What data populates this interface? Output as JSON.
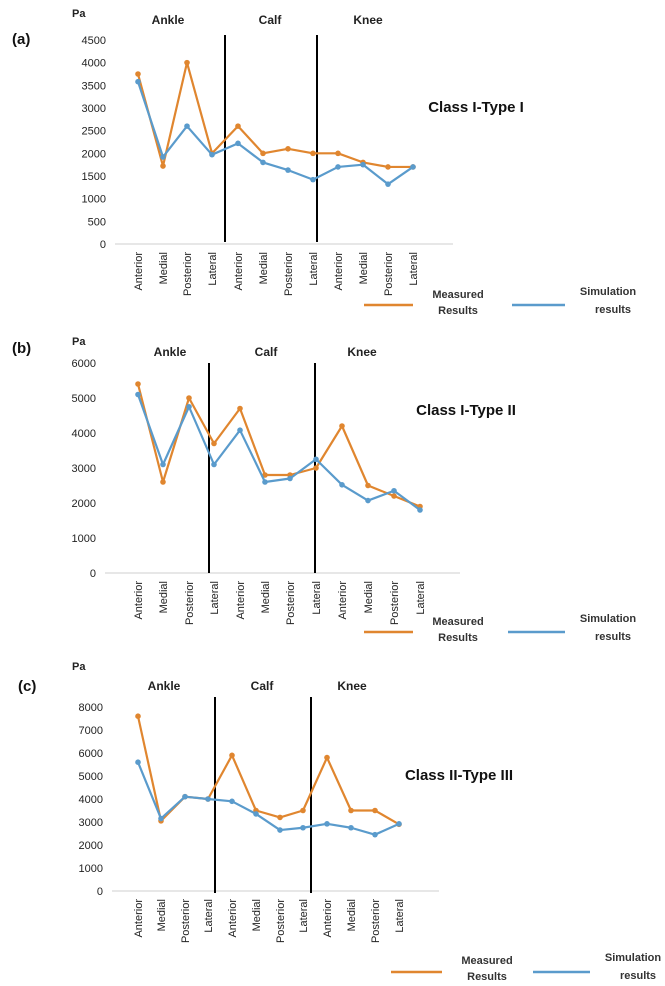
{
  "colors": {
    "measured": "#e0862f",
    "simulation": "#5a9bcc",
    "separator": "#000000",
    "axis": "#cfcfcf"
  },
  "chart_data": [
    {
      "type": "line",
      "panel_label": "(a)",
      "unit_label": "Pa",
      "class_label": "Class I-Type I",
      "groups": [
        "Ankle",
        "Calf",
        "Knee"
      ],
      "categories": [
        "Anterior",
        "Medial",
        "Posterior",
        "Lateral",
        "Anterior",
        "Medial",
        "Posterior",
        "Lateral",
        "Anterior",
        "Medial",
        "Posterior",
        "Lateral"
      ],
      "ylim": [
        0,
        4500
      ],
      "yticks": [
        "0",
        "500",
        "1000",
        "1500",
        "2000",
        "2500",
        "3000",
        "3500",
        "4000",
        "4500"
      ],
      "series": [
        {
          "name": "Measured Results",
          "values": [
            3750,
            1720,
            4000,
            2000,
            2600,
            2000,
            2100,
            2000,
            2000,
            1800,
            1700,
            1700
          ]
        },
        {
          "name": "Simulation results",
          "values": [
            3580,
            1920,
            2600,
            1970,
            2220,
            1800,
            1630,
            1420,
            1700,
            1750,
            1320,
            1700
          ]
        }
      ],
      "legend": {
        "measured_line1": "Measured",
        "measured_line2": "Results",
        "simulation_line1": "Simulation",
        "simulation_line2": "results"
      }
    },
    {
      "type": "line",
      "panel_label": "(b)",
      "unit_label": "Pa",
      "class_label": "Class I-Type II",
      "groups": [
        "Ankle",
        "Calf",
        "Knee"
      ],
      "categories": [
        "Anterior",
        "Medial",
        "Posterior",
        "Lateral",
        "Anterior",
        "Medial",
        "Posterior",
        "Lateral",
        "Anterior",
        "Medial",
        "Posterior",
        "Lateral"
      ],
      "ylim": [
        0,
        6000
      ],
      "yticks": [
        "0",
        "1000",
        "2000",
        "3000",
        "4000",
        "5000",
        "6000"
      ],
      "series": [
        {
          "name": "Measured Results",
          "values": [
            5400,
            2600,
            5000,
            3700,
            4700,
            2800,
            2800,
            3000,
            4200,
            2500,
            2200,
            1900
          ]
        },
        {
          "name": "Simulation results",
          "values": [
            5100,
            3100,
            4750,
            3100,
            4080,
            2600,
            2700,
            3250,
            2520,
            2070,
            2350,
            1800
          ]
        }
      ],
      "legend": {
        "measured_line1": "Measured",
        "measured_line2": "Results",
        "simulation_line1": "Simulation",
        "simulation_line2": "results"
      }
    },
    {
      "type": "line",
      "panel_label": "(c)",
      "unit_label": "Pa",
      "class_label": "Class II-Type III",
      "groups": [
        "Ankle",
        "Calf",
        "Knee"
      ],
      "categories": [
        "Anterior",
        "Medial",
        "Posterior",
        "Lateral",
        "Anterior",
        "Medial",
        "Posterior",
        "Lateral",
        "Anterior",
        "Medial",
        "Posterior",
        "Lateral"
      ],
      "ylim": [
        0,
        8000
      ],
      "yticks": [
        "0",
        "1000",
        "2000",
        "3000",
        "4000",
        "5000",
        "6000",
        "7000",
        "8000"
      ],
      "series": [
        {
          "name": "Measured Results",
          "values": [
            7600,
            3050,
            4100,
            4000,
            5900,
            3500,
            3200,
            3500,
            5800,
            3500,
            3500,
            2900
          ]
        },
        {
          "name": "Simulation results",
          "values": [
            5600,
            3150,
            4100,
            4000,
            3900,
            3350,
            2650,
            2750,
            2920,
            2750,
            2450,
            2920
          ]
        }
      ],
      "legend": {
        "measured_line1": "Measured",
        "measured_line2": "Results",
        "simulation_line1": "Simulation",
        "simulation_line2": "results"
      }
    }
  ]
}
